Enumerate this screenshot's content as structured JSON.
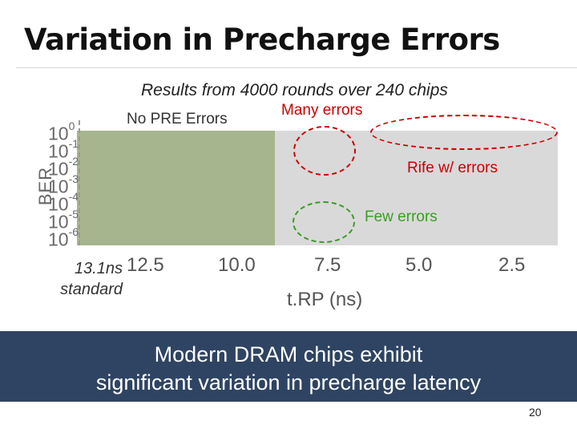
{
  "slide": {
    "title": "Variation in Precharge Errors",
    "subtitle": "Results from 4000 rounds over 240 chips",
    "page_number": "20"
  },
  "chart_data": {
    "type": "area",
    "subtitle": "Results from 4000 rounds over 240 chips",
    "xlabel": "t.RP (ns)",
    "ylabel": "BER",
    "x_tick_labels": [
      "12.5",
      "10.0",
      "7.5",
      "5.0",
      "2.5"
    ],
    "y_tick_labels": [
      {
        "base": "10",
        "exp": "0"
      },
      {
        "base": "10",
        "exp": "-1"
      },
      {
        "base": "10",
        "exp": "-2"
      },
      {
        "base": "10",
        "exp": "-3"
      },
      {
        "base": "10",
        "exp": "-4"
      },
      {
        "base": "10",
        "exp": "-5"
      },
      {
        "base": "10",
        "exp": "-6"
      }
    ],
    "standard_label": "13.1ns\nstandard",
    "regions": [
      {
        "label": "No PRE Errors",
        "x_from": 13.1,
        "x_to": 8.3,
        "color": "#a6b58e"
      },
      {
        "label": "Many errors",
        "x_from": 8.3,
        "x_to": 1.7,
        "color": "#d9d9d9"
      }
    ],
    "annotations": [
      {
        "text": "Rife w/ errors",
        "color": "#cc0000"
      },
      {
        "text": "Few errors",
        "color": "#3a9d23"
      }
    ]
  },
  "banner": {
    "line1": "Modern DRAM chips exhibit",
    "line2": "significant variation in precharge latency"
  }
}
